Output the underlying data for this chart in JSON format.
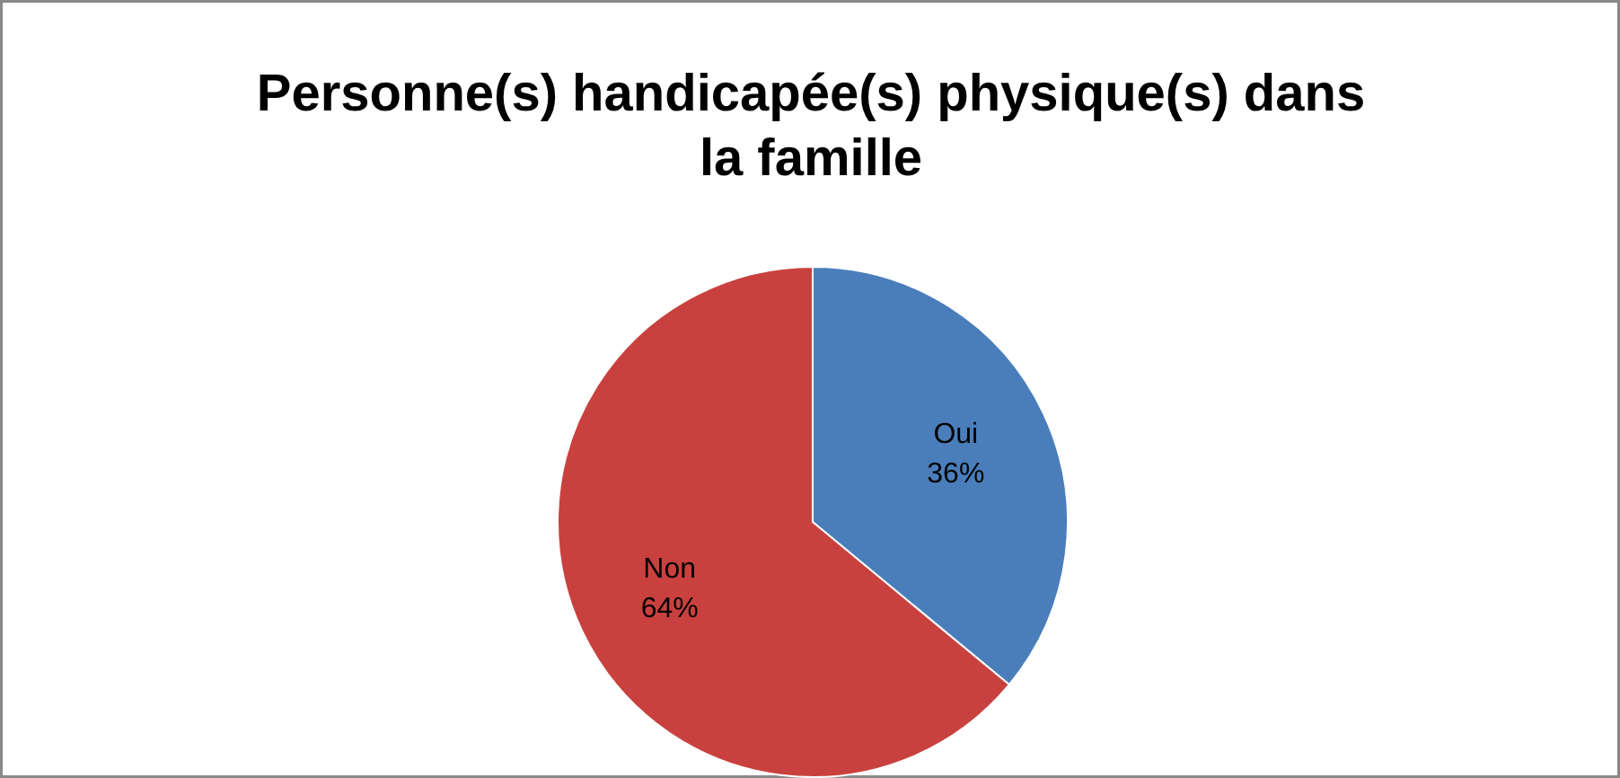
{
  "chart_data": {
    "type": "pie",
    "title": "Personne(s) handicapée(s) physique(s) dans la famille",
    "categories": [
      "Oui",
      "Non"
    ],
    "values": [
      36,
      64
    ],
    "value_labels": [
      "36%",
      "64%"
    ],
    "colors": [
      "#4a7ebb",
      "#c9413e"
    ]
  }
}
